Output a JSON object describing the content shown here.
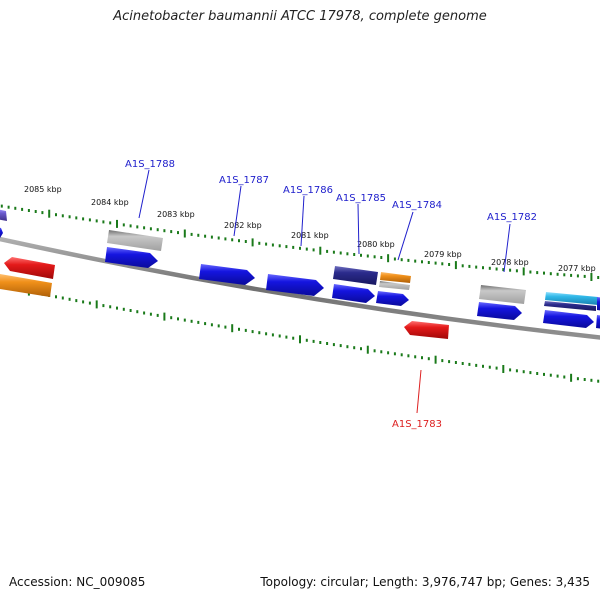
{
  "title": "Acinetobacter baumannii ATCC 17978, complete genome",
  "footer": {
    "accession": "Accession: NC_009085",
    "topology": "Topology: circular; Length: 3,976,747 bp; Genes: 3,435"
  },
  "colors": {
    "backbone": "#808080",
    "tick": "#1a7a1a",
    "gene_blue": "#1515e0",
    "gene_navy": "#2b2b8c",
    "gene_gray": "#b4b4b4",
    "gene_red": "#e41a1a",
    "gene_orange": "#f0901a",
    "gene_cyan": "#30b8e8",
    "gene_purple": "#6a5acd",
    "label_forward": "#2020cc",
    "label_reverse": "#dd2020"
  },
  "scale": {
    "labels": [
      "2085 kbp",
      "2084 kbp",
      "2083 kbp",
      "2082 kbp",
      "2081 kbp",
      "2080 kbp",
      "2079 kbp",
      "2078 kbp",
      "2077 kbp"
    ]
  },
  "gene_labels": [
    {
      "id": "A1S_1788",
      "strand": "forward"
    },
    {
      "id": "A1S_1787",
      "strand": "forward"
    },
    {
      "id": "A1S_1786",
      "strand": "forward"
    },
    {
      "id": "A1S_1785",
      "strand": "forward"
    },
    {
      "id": "A1S_1784",
      "strand": "forward"
    },
    {
      "id": "A1S_1782",
      "strand": "forward"
    },
    {
      "id": "A1S_1783",
      "strand": "reverse"
    }
  ]
}
